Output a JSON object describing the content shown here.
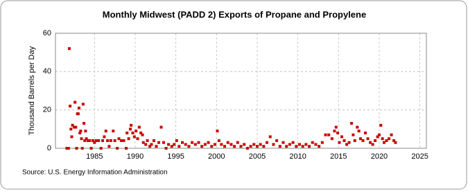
{
  "chart_data": {
    "type": "scatter",
    "title": "Monthly Midwest (PADD 2) Exports of Propane and Propylene",
    "y_label": "Thousand Barrels per Day",
    "source": "Source: U.S. Energy Information Administration",
    "color": "#cc0000",
    "grid": true,
    "xlim": [
      1980.2,
      2025.8
    ],
    "xticks": [
      1985,
      1990,
      1995,
      2000,
      2005,
      2010,
      2015,
      2020,
      2025
    ],
    "ylim": [
      0,
      60
    ],
    "yticks": [
      0,
      20,
      40,
      60
    ],
    "x": [
      1981.6,
      1981.8,
      1981.9,
      1982.0,
      1982.1,
      1982.2,
      1982.3,
      1982.5,
      1982.6,
      1982.7,
      1982.8,
      1982.9,
      1983.0,
      1983.1,
      1983.2,
      1983.3,
      1983.4,
      1983.5,
      1983.6,
      1983.7,
      1983.8,
      1983.9,
      1984.0,
      1984.2,
      1984.4,
      1984.6,
      1984.8,
      1985.0,
      1985.2,
      1985.5,
      1985.8,
      1986.0,
      1986.2,
      1986.4,
      1986.6,
      1986.8,
      1987.0,
      1987.3,
      1987.5,
      1987.8,
      1988.0,
      1988.3,
      1988.6,
      1988.9,
      1989.0,
      1989.2,
      1989.4,
      1989.5,
      1989.7,
      1989.9,
      1990.1,
      1990.3,
      1990.5,
      1990.7,
      1990.9,
      1991.0,
      1991.3,
      1991.5,
      1991.8,
      1992.0,
      1992.3,
      1992.6,
      1992.9,
      1993.2,
      1993.5,
      1993.8,
      1994.1,
      1994.5,
      1994.8,
      1995.1,
      1995.4,
      1995.8,
      1996.2,
      1996.6,
      1997.0,
      1997.4,
      1997.8,
      1998.2,
      1998.6,
      1999.0,
      1999.4,
      1999.8,
      2000.1,
      2000.3,
      2000.6,
      2001.0,
      2001.4,
      2001.8,
      2002.2,
      2002.6,
      2003.0,
      2003.4,
      2003.8,
      2004.2,
      2004.6,
      2005.0,
      2005.4,
      2005.8,
      2006.2,
      2006.6,
      2007.0,
      2007.4,
      2007.8,
      2008.2,
      2008.6,
      2009.0,
      2009.4,
      2009.8,
      2010.2,
      2010.6,
      2011.0,
      2011.4,
      2011.8,
      2012.2,
      2012.6,
      2013.0,
      2013.4,
      2013.8,
      2014.2,
      2014.5,
      2014.7,
      2014.9,
      2015.1,
      2015.4,
      2015.7,
      2016.0,
      2016.3,
      2016.6,
      2016.8,
      2017.0,
      2017.3,
      2017.5,
      2017.7,
      2018.0,
      2018.3,
      2018.6,
      2018.9,
      2019.2,
      2019.5,
      2019.8,
      2020.0,
      2020.2,
      2020.4,
      2020.6,
      2020.9,
      2021.2,
      2021.5,
      2021.8,
      2022.0
    ],
    "values": [
      0,
      0,
      52,
      22,
      10,
      6,
      12,
      11,
      24,
      11,
      0,
      18,
      18,
      21,
      8,
      9,
      5,
      0,
      23,
      13,
      4,
      9,
      5,
      4,
      4,
      0,
      4,
      3,
      4,
      4,
      0,
      4,
      6,
      9,
      4,
      1,
      4,
      9,
      4,
      0,
      5,
      4,
      4,
      0,
      8,
      5,
      10,
      12,
      8,
      6,
      9,
      5,
      11,
      8,
      7,
      3,
      2,
      4,
      1,
      2,
      4,
      1,
      3,
      11,
      3,
      0,
      2,
      1,
      2,
      4,
      1,
      3,
      2,
      1,
      3,
      2,
      3,
      1,
      2,
      3,
      1,
      2,
      9,
      4,
      2,
      1,
      3,
      2,
      1,
      3,
      1,
      2,
      0,
      1,
      2,
      1,
      2,
      1,
      3,
      6,
      2,
      4,
      1,
      3,
      1,
      2,
      3,
      1,
      2,
      1,
      2,
      1,
      3,
      2,
      1,
      3,
      7,
      7,
      5,
      9,
      11,
      8,
      3,
      6,
      4,
      2,
      3,
      13,
      7,
      4,
      11,
      9,
      5,
      4,
      8,
      5,
      3,
      2,
      4,
      6,
      7,
      12,
      5,
      3,
      4,
      5,
      7,
      4,
      3
    ]
  }
}
